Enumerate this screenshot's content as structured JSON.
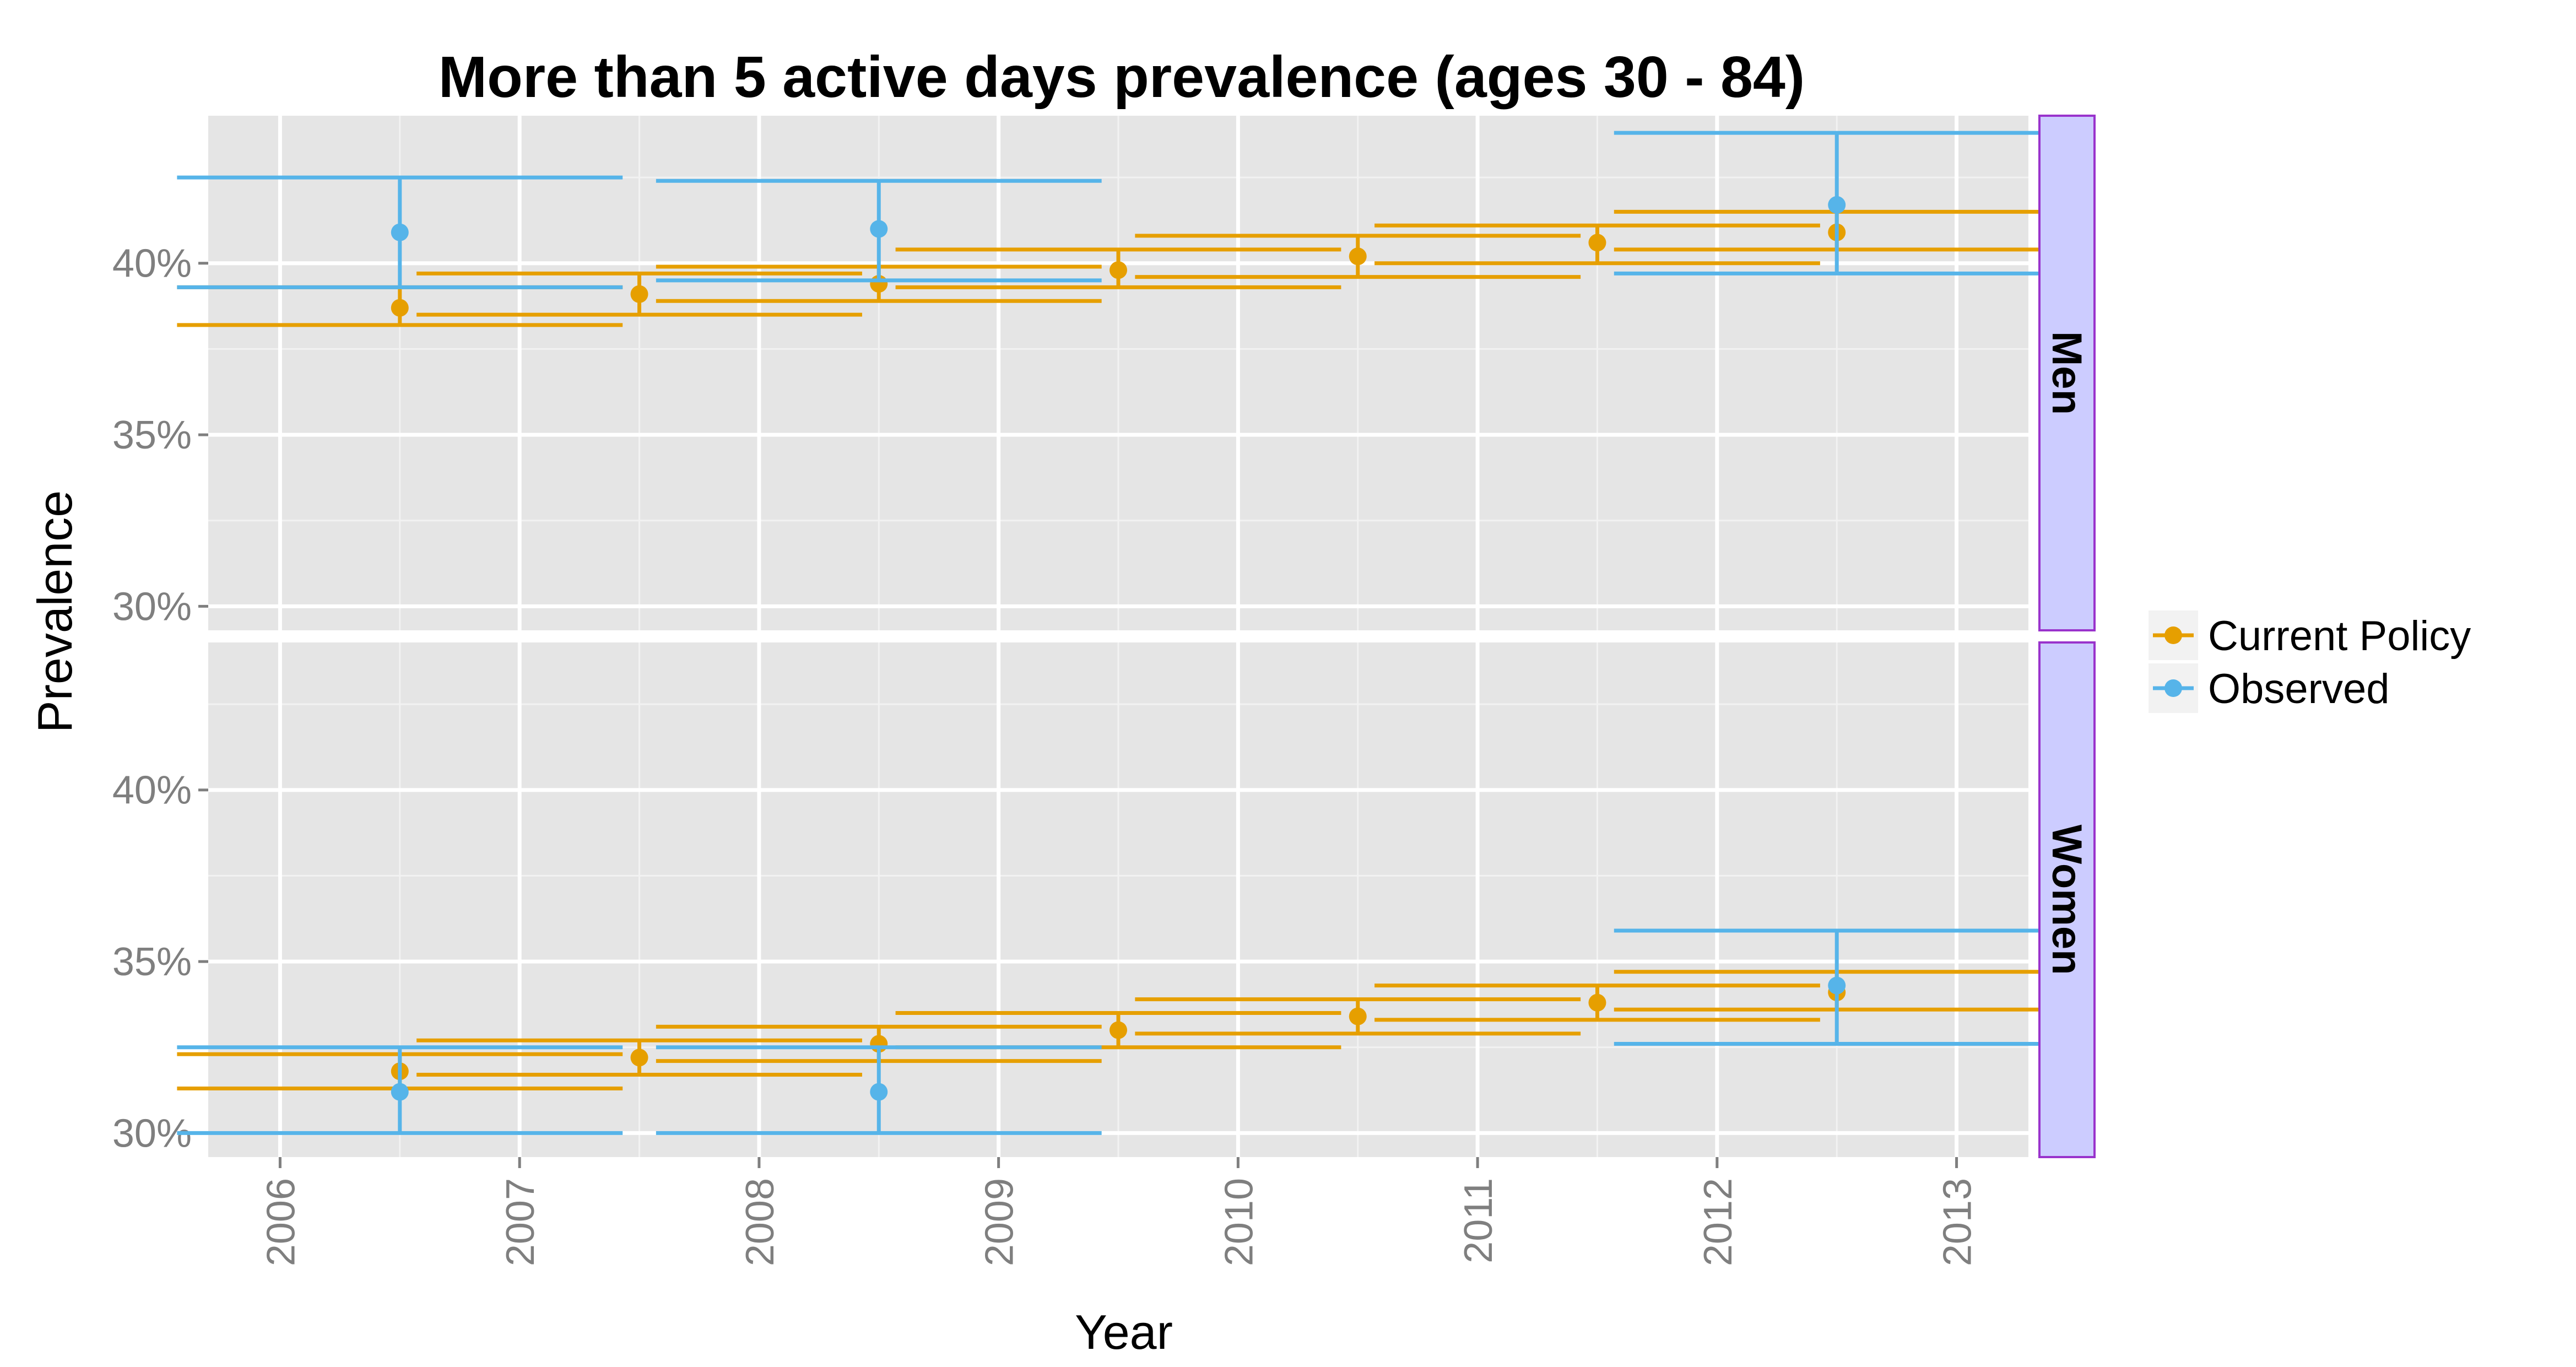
{
  "chart_data": {
    "type": "scatter",
    "title": "More than 5 active days prevalence (ages 30 - 84)",
    "xlabel": "Year",
    "ylabel": "Prevalence",
    "x_ticks": [
      "2006",
      "2007",
      "2008",
      "2009",
      "2010",
      "2011",
      "2012",
      "2013"
    ],
    "xlim": [
      2005.7,
      2013.3
    ],
    "ylim": [
      0.293,
      0.443
    ],
    "y_ticks": [
      {
        "value": 0.3,
        "label": "30%"
      },
      {
        "value": 0.35,
        "label": "35%"
      },
      {
        "value": 0.4,
        "label": "40%"
      }
    ],
    "grid": true,
    "legend_position": "right",
    "colors": {
      "Current Policy": "#E69F00",
      "Observed": "#56B4E9",
      "panel_bg": "#E5E5E5",
      "strip_bg": "#CCCCFF",
      "strip_border": "#9933CC"
    },
    "legend": [
      "Current Policy",
      "Observed"
    ],
    "panels": [
      {
        "label": "Men",
        "series": [
          {
            "name": "Current Policy",
            "points": [
              {
                "x": 2006.5,
                "y": 0.387,
                "lo": 0.382,
                "hi": 0.393
              },
              {
                "x": 2007.5,
                "y": 0.391,
                "lo": 0.385,
                "hi": 0.397
              },
              {
                "x": 2008.5,
                "y": 0.394,
                "lo": 0.389,
                "hi": 0.399
              },
              {
                "x": 2009.5,
                "y": 0.398,
                "lo": 0.393,
                "hi": 0.404
              },
              {
                "x": 2010.5,
                "y": 0.402,
                "lo": 0.396,
                "hi": 0.408
              },
              {
                "x": 2011.5,
                "y": 0.406,
                "lo": 0.4,
                "hi": 0.411
              },
              {
                "x": 2012.5,
                "y": 0.409,
                "lo": 0.404,
                "hi": 0.415
              }
            ]
          },
          {
            "name": "Observed",
            "points": [
              {
                "x": 2006.5,
                "y": 0.409,
                "lo": 0.393,
                "hi": 0.425
              },
              {
                "x": 2008.5,
                "y": 0.41,
                "lo": 0.395,
                "hi": 0.424
              },
              {
                "x": 2012.5,
                "y": 0.417,
                "lo": 0.397,
                "hi": 0.438
              }
            ]
          }
        ]
      },
      {
        "label": "Women",
        "series": [
          {
            "name": "Current Policy",
            "points": [
              {
                "x": 2006.5,
                "y": 0.318,
                "lo": 0.313,
                "hi": 0.323
              },
              {
                "x": 2007.5,
                "y": 0.322,
                "lo": 0.317,
                "hi": 0.327
              },
              {
                "x": 2008.5,
                "y": 0.326,
                "lo": 0.321,
                "hi": 0.331
              },
              {
                "x": 2009.5,
                "y": 0.33,
                "lo": 0.325,
                "hi": 0.335
              },
              {
                "x": 2010.5,
                "y": 0.334,
                "lo": 0.329,
                "hi": 0.339
              },
              {
                "x": 2011.5,
                "y": 0.338,
                "lo": 0.333,
                "hi": 0.343
              },
              {
                "x": 2012.5,
                "y": 0.341,
                "lo": 0.336,
                "hi": 0.347
              }
            ]
          },
          {
            "name": "Observed",
            "points": [
              {
                "x": 2006.5,
                "y": 0.312,
                "lo": 0.3,
                "hi": 0.325
              },
              {
                "x": 2008.5,
                "y": 0.312,
                "lo": 0.3,
                "hi": 0.325
              },
              {
                "x": 2012.5,
                "y": 0.343,
                "lo": 0.326,
                "hi": 0.359
              }
            ]
          }
        ]
      }
    ]
  }
}
